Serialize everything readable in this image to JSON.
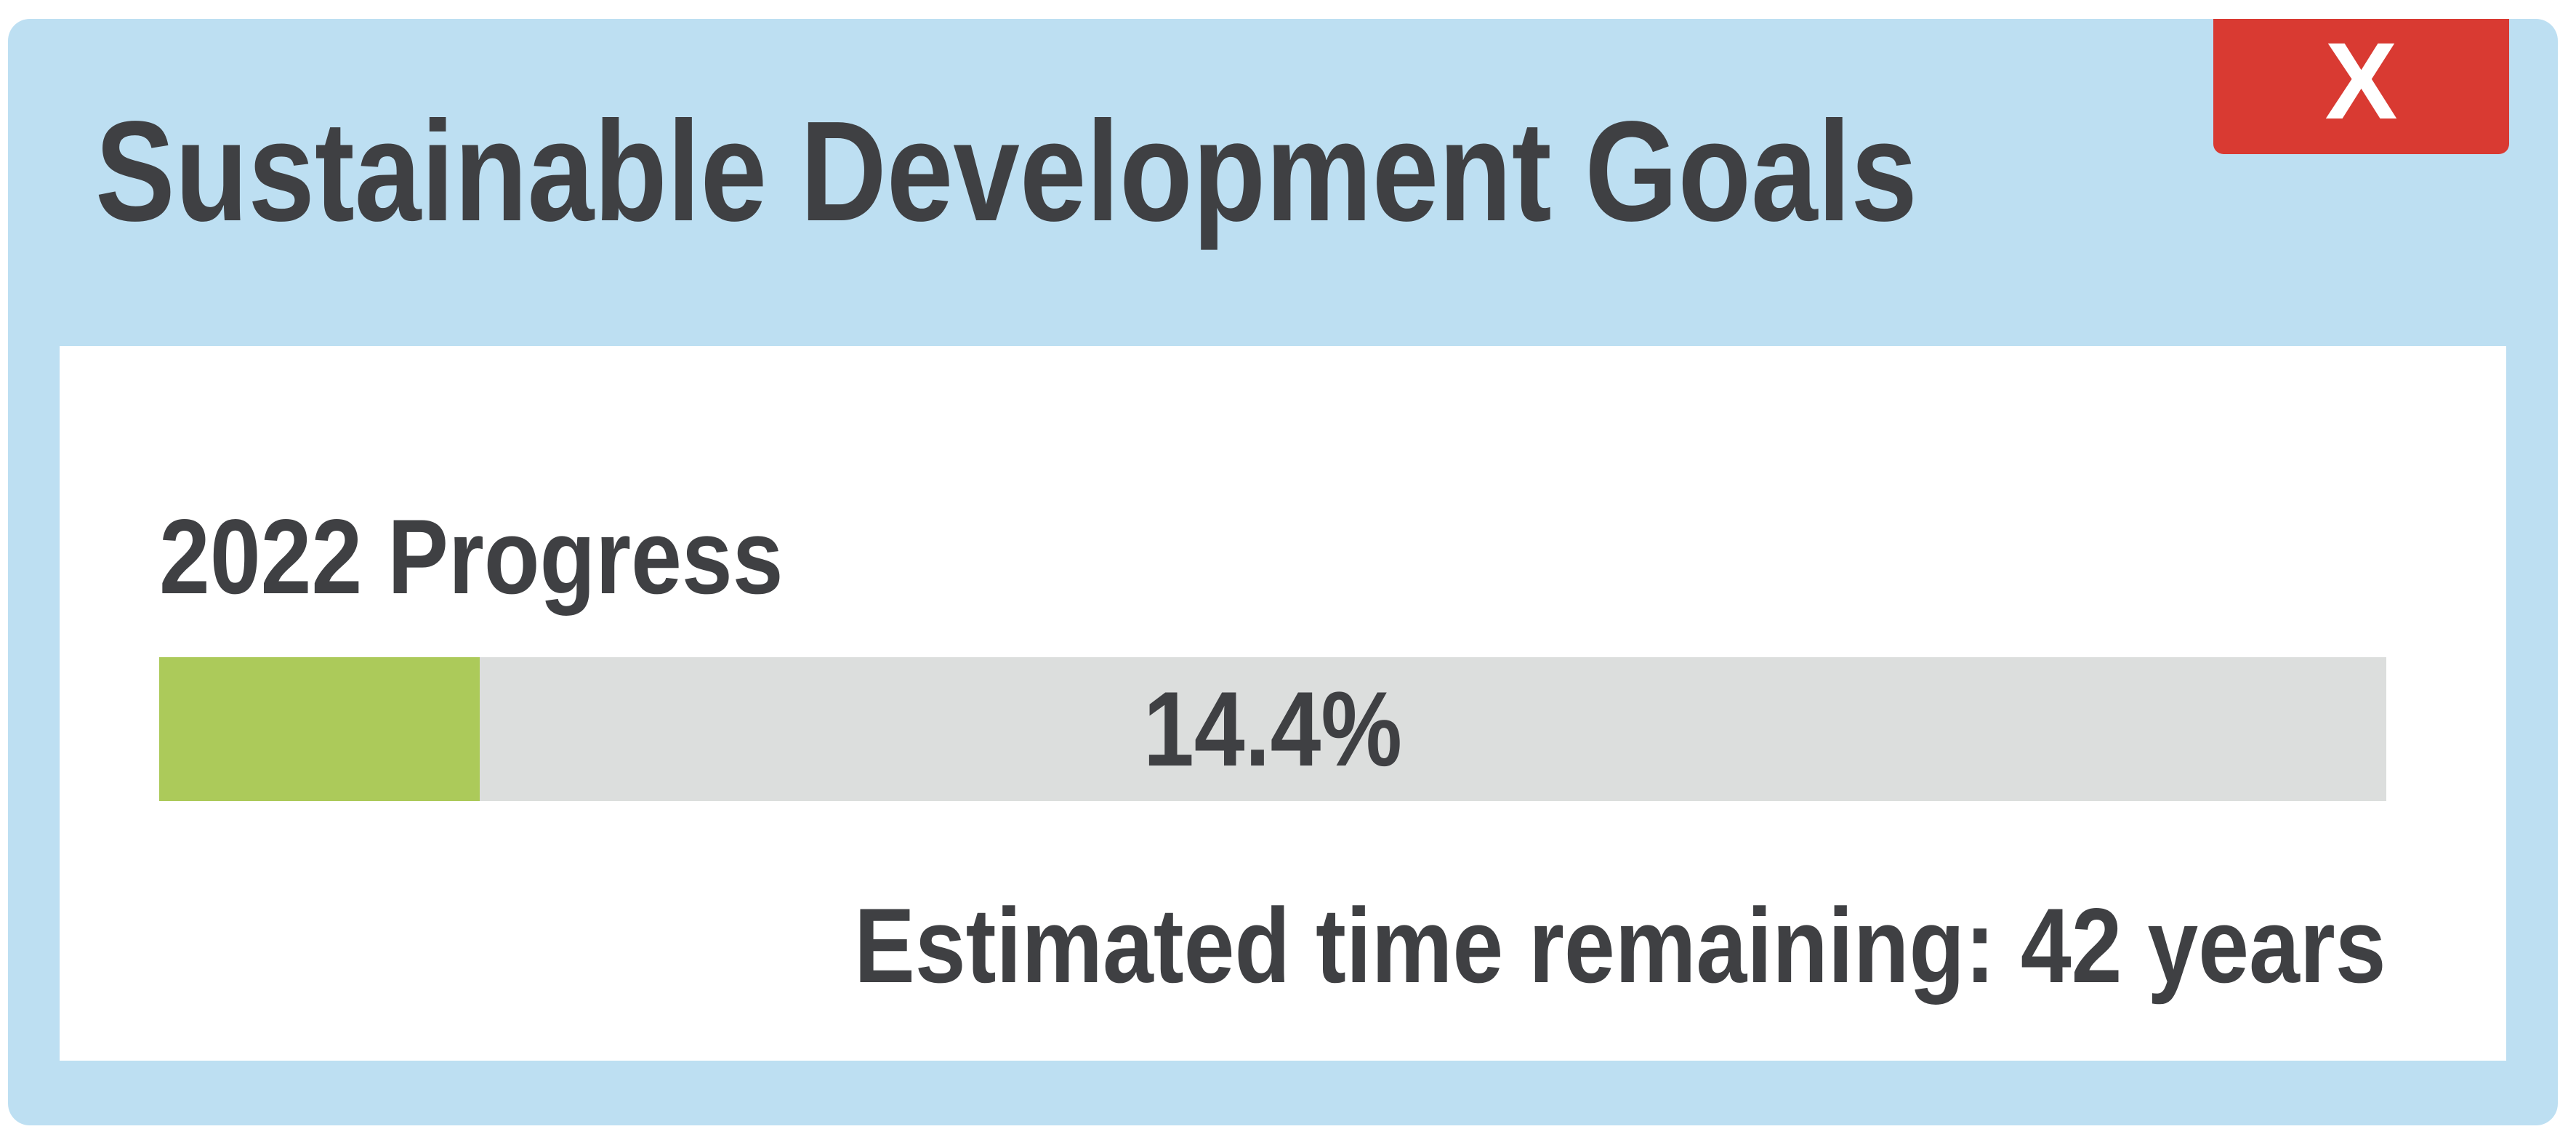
{
  "window": {
    "title": "Sustainable Development Goals",
    "close_label": "X"
  },
  "progress": {
    "heading": "2022 Progress",
    "value_percent": 14.4,
    "label": "14.4%",
    "estimate_text": "Estimated time remaining: 42 years"
  },
  "colors": {
    "window_frame": "#bddff2",
    "close_button": "#d93a32",
    "progress_fill": "#acca5a",
    "progress_track": "#dcdedd",
    "text": "#3f4043"
  }
}
